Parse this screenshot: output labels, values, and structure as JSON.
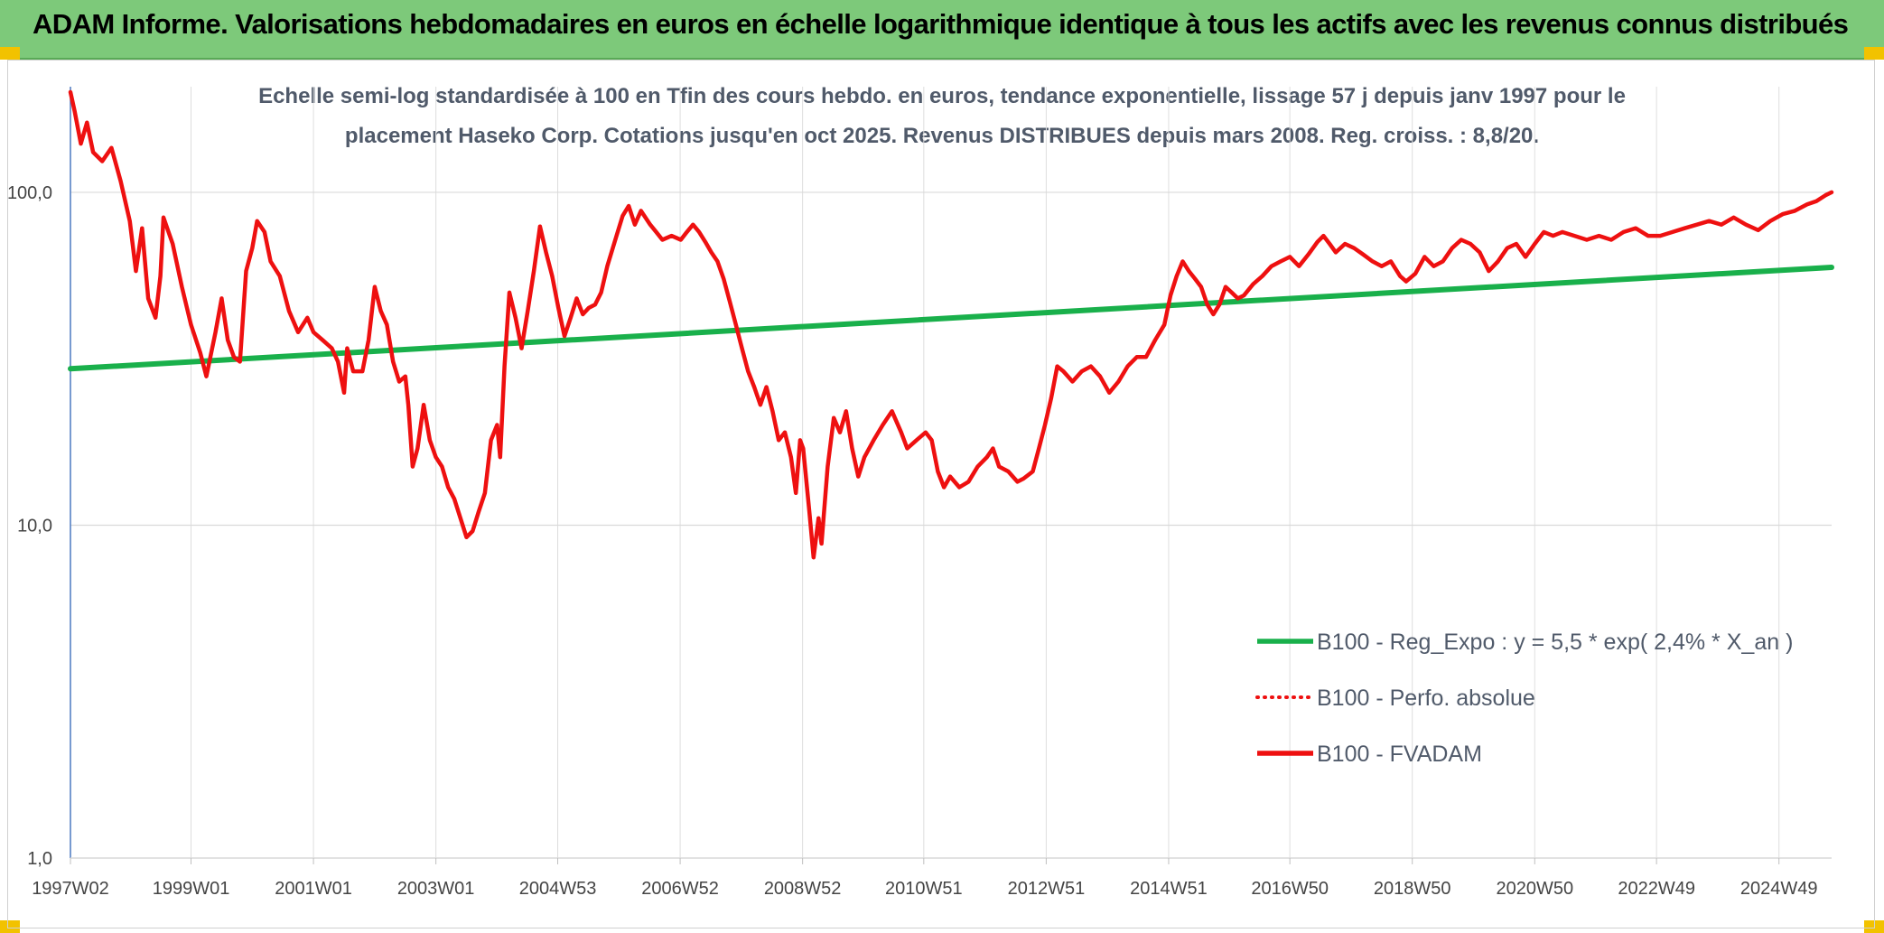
{
  "header": {
    "title": "ADAM Informe. Valorisations hebdomadaires en euros en échelle logarithmique identique à tous les actifs avec les revenus connus distribués"
  },
  "colors": {
    "banner": "#7dc97a",
    "regression": "#19b04b",
    "fvadam": "#ee1010",
    "perfo": "#ee1010"
  },
  "chart_data": {
    "type": "line",
    "title_lines": [
      "Echelle semi-log standardisée à 100 en Tfin des cours hebdo. en euros, tendance exponentielle, lissage 57 j depuis janv 1997 pour le",
      "placement Haseko Corp. Cotations jusqu'en oct 2025. Revenus DISTRIBUES depuis mars 2008. Reg. croiss. : 8,8/20."
    ],
    "y_scale": "log",
    "ylim": [
      1,
      200
    ],
    "y_ticks": [
      {
        "value": 1,
        "label": "1,0"
      },
      {
        "value": 10,
        "label": "10,0"
      },
      {
        "value": 100,
        "label": "100,0"
      }
    ],
    "xlim": [
      1997.03,
      2025.8
    ],
    "x_ticks": [
      {
        "value": 1997.03,
        "label": "1997W02"
      },
      {
        "value": 1999.0,
        "label": "1999W01"
      },
      {
        "value": 2001.0,
        "label": "2001W01"
      },
      {
        "value": 2003.0,
        "label": "2003W01"
      },
      {
        "value": 2004.99,
        "label": "2004W53"
      },
      {
        "value": 2006.99,
        "label": "2006W52"
      },
      {
        "value": 2008.99,
        "label": "2008W52"
      },
      {
        "value": 2010.97,
        "label": "2010W51"
      },
      {
        "value": 2012.97,
        "label": "2012W51"
      },
      {
        "value": 2014.97,
        "label": "2014W51"
      },
      {
        "value": 2016.95,
        "label": "2016W50"
      },
      {
        "value": 2018.95,
        "label": "2018W50"
      },
      {
        "value": 2020.95,
        "label": "2020W50"
      },
      {
        "value": 2022.94,
        "label": "2022W49"
      },
      {
        "value": 2024.94,
        "label": "2024W49"
      }
    ],
    "legend_position": "bottom-right",
    "series": [
      {
        "name": "B100 - Reg_Expo : y = 5,5 * exp( 2,4% *  X_an )",
        "style": "solid",
        "points": [
          [
            1997.03,
            29.5
          ],
          [
            2025.8,
            59.5
          ]
        ]
      },
      {
        "name": "B100 - Perfo. absolue",
        "style": "dotted",
        "points": []
      },
      {
        "name": "B100 - FVADAM",
        "style": "solid",
        "points": [
          [
            1997.03,
            200
          ],
          [
            1997.1,
            175
          ],
          [
            1997.2,
            140
          ],
          [
            1997.3,
            162
          ],
          [
            1997.4,
            132
          ],
          [
            1997.55,
            124
          ],
          [
            1997.7,
            136
          ],
          [
            1997.85,
            108
          ],
          [
            1998.0,
            82
          ],
          [
            1998.1,
            58
          ],
          [
            1998.2,
            78
          ],
          [
            1998.3,
            48
          ],
          [
            1998.42,
            42
          ],
          [
            1998.5,
            56
          ],
          [
            1998.55,
            84
          ],
          [
            1998.7,
            70
          ],
          [
            1998.85,
            52
          ],
          [
            1999.0,
            40
          ],
          [
            1999.15,
            33
          ],
          [
            1999.25,
            28
          ],
          [
            1999.4,
            38
          ],
          [
            1999.5,
            48
          ],
          [
            1999.6,
            36
          ],
          [
            1999.7,
            32
          ],
          [
            1999.8,
            31
          ],
          [
            1999.9,
            58
          ],
          [
            2000.0,
            68
          ],
          [
            2000.08,
            82
          ],
          [
            2000.2,
            76
          ],
          [
            2000.3,
            62
          ],
          [
            2000.45,
            56
          ],
          [
            2000.6,
            44
          ],
          [
            2000.75,
            38
          ],
          [
            2000.9,
            42
          ],
          [
            2001.0,
            38
          ],
          [
            2001.15,
            36
          ],
          [
            2001.3,
            34
          ],
          [
            2001.4,
            31
          ],
          [
            2001.5,
            25
          ],
          [
            2001.55,
            34
          ],
          [
            2001.65,
            29
          ],
          [
            2001.8,
            29
          ],
          [
            2001.9,
            36
          ],
          [
            2002.0,
            52
          ],
          [
            2002.1,
            44
          ],
          [
            2002.2,
            40
          ],
          [
            2002.3,
            31
          ],
          [
            2002.4,
            27
          ],
          [
            2002.5,
            28
          ],
          [
            2002.55,
            23
          ],
          [
            2002.62,
            15
          ],
          [
            2002.7,
            17
          ],
          [
            2002.8,
            23
          ],
          [
            2002.9,
            18
          ],
          [
            2003.0,
            16
          ],
          [
            2003.1,
            15
          ],
          [
            2003.2,
            13
          ],
          [
            2003.3,
            12
          ],
          [
            2003.4,
            10.5
          ],
          [
            2003.5,
            9.2
          ],
          [
            2003.6,
            9.6
          ],
          [
            2003.7,
            11
          ],
          [
            2003.8,
            12.5
          ],
          [
            2003.9,
            18
          ],
          [
            2004.0,
            20
          ],
          [
            2004.05,
            16
          ],
          [
            2004.12,
            30
          ],
          [
            2004.2,
            50
          ],
          [
            2004.3,
            42
          ],
          [
            2004.4,
            34
          ],
          [
            2004.5,
            44
          ],
          [
            2004.6,
            58
          ],
          [
            2004.7,
            79
          ],
          [
            2004.8,
            66
          ],
          [
            2004.9,
            56
          ],
          [
            2005.0,
            45
          ],
          [
            2005.1,
            37
          ],
          [
            2005.2,
            42
          ],
          [
            2005.3,
            48
          ],
          [
            2005.4,
            43
          ],
          [
            2005.5,
            45
          ],
          [
            2005.6,
            46
          ],
          [
            2005.7,
            50
          ],
          [
            2005.8,
            60
          ],
          [
            2005.95,
            74
          ],
          [
            2006.05,
            85
          ],
          [
            2006.15,
            91
          ],
          [
            2006.25,
            80
          ],
          [
            2006.35,
            88
          ],
          [
            2006.5,
            80
          ],
          [
            2006.6,
            76
          ],
          [
            2006.7,
            72
          ],
          [
            2006.85,
            74
          ],
          [
            2007.0,
            72
          ],
          [
            2007.1,
            76
          ],
          [
            2007.2,
            80
          ],
          [
            2007.3,
            76
          ],
          [
            2007.4,
            71
          ],
          [
            2007.5,
            66
          ],
          [
            2007.6,
            62
          ],
          [
            2007.7,
            55
          ],
          [
            2007.8,
            47
          ],
          [
            2007.9,
            40
          ],
          [
            2008.0,
            34
          ],
          [
            2008.1,
            29
          ],
          [
            2008.2,
            26
          ],
          [
            2008.3,
            23
          ],
          [
            2008.4,
            26
          ],
          [
            2008.5,
            22
          ],
          [
            2008.6,
            18
          ],
          [
            2008.7,
            19
          ],
          [
            2008.8,
            16
          ],
          [
            2008.88,
            12.5
          ],
          [
            2008.95,
            18
          ],
          [
            2009.0,
            17
          ],
          [
            2009.1,
            11
          ],
          [
            2009.17,
            8.0
          ],
          [
            2009.25,
            10.5
          ],
          [
            2009.3,
            8.8
          ],
          [
            2009.4,
            15
          ],
          [
            2009.5,
            21
          ],
          [
            2009.6,
            19
          ],
          [
            2009.7,
            22
          ],
          [
            2009.8,
            17
          ],
          [
            2009.9,
            14
          ],
          [
            2010.0,
            16
          ],
          [
            2010.15,
            18
          ],
          [
            2010.3,
            20
          ],
          [
            2010.45,
            22
          ],
          [
            2010.6,
            19
          ],
          [
            2010.7,
            17
          ],
          [
            2010.85,
            18
          ],
          [
            2011.0,
            19
          ],
          [
            2011.1,
            18
          ],
          [
            2011.2,
            14.5
          ],
          [
            2011.3,
            13
          ],
          [
            2011.4,
            14
          ],
          [
            2011.55,
            13
          ],
          [
            2011.7,
            13.5
          ],
          [
            2011.85,
            15
          ],
          [
            2012.0,
            16
          ],
          [
            2012.1,
            17
          ],
          [
            2012.2,
            15
          ],
          [
            2012.35,
            14.5
          ],
          [
            2012.5,
            13.5
          ],
          [
            2012.6,
            13.8
          ],
          [
            2012.75,
            14.5
          ],
          [
            2012.85,
            17
          ],
          [
            2012.95,
            20
          ],
          [
            2013.05,
            24
          ],
          [
            2013.15,
            30
          ],
          [
            2013.25,
            29
          ],
          [
            2013.4,
            27
          ],
          [
            2013.55,
            29
          ],
          [
            2013.7,
            30
          ],
          [
            2013.85,
            28
          ],
          [
            2014.0,
            25
          ],
          [
            2014.15,
            27
          ],
          [
            2014.3,
            30
          ],
          [
            2014.45,
            32
          ],
          [
            2014.6,
            32
          ],
          [
            2014.75,
            36
          ],
          [
            2014.9,
            40
          ],
          [
            2015.0,
            49
          ],
          [
            2015.1,
            56
          ],
          [
            2015.2,
            62
          ],
          [
            2015.3,
            58
          ],
          [
            2015.4,
            55
          ],
          [
            2015.5,
            52
          ],
          [
            2015.6,
            46
          ],
          [
            2015.7,
            43
          ],
          [
            2015.8,
            46
          ],
          [
            2015.9,
            52
          ],
          [
            2016.0,
            50
          ],
          [
            2016.1,
            48
          ],
          [
            2016.2,
            49
          ],
          [
            2016.35,
            53
          ],
          [
            2016.5,
            56
          ],
          [
            2016.65,
            60
          ],
          [
            2016.8,
            62
          ],
          [
            2016.95,
            64
          ],
          [
            2017.1,
            60
          ],
          [
            2017.25,
            65
          ],
          [
            2017.4,
            71
          ],
          [
            2017.5,
            74
          ],
          [
            2017.6,
            70
          ],
          [
            2017.7,
            66
          ],
          [
            2017.85,
            70
          ],
          [
            2018.0,
            68
          ],
          [
            2018.15,
            65
          ],
          [
            2018.3,
            62
          ],
          [
            2018.45,
            60
          ],
          [
            2018.6,
            62
          ],
          [
            2018.75,
            56
          ],
          [
            2018.85,
            54
          ],
          [
            2019.0,
            57
          ],
          [
            2019.15,
            64
          ],
          [
            2019.3,
            60
          ],
          [
            2019.45,
            62
          ],
          [
            2019.6,
            68
          ],
          [
            2019.75,
            72
          ],
          [
            2019.9,
            70
          ],
          [
            2020.05,
            66
          ],
          [
            2020.2,
            58
          ],
          [
            2020.35,
            62
          ],
          [
            2020.5,
            68
          ],
          [
            2020.65,
            70
          ],
          [
            2020.8,
            64
          ],
          [
            2020.95,
            70
          ],
          [
            2021.1,
            76
          ],
          [
            2021.25,
            74
          ],
          [
            2021.4,
            76
          ],
          [
            2021.6,
            74
          ],
          [
            2021.8,
            72
          ],
          [
            2022.0,
            74
          ],
          [
            2022.2,
            72
          ],
          [
            2022.4,
            76
          ],
          [
            2022.6,
            78
          ],
          [
            2022.8,
            74
          ],
          [
            2023.0,
            74
          ],
          [
            2023.2,
            76
          ],
          [
            2023.4,
            78
          ],
          [
            2023.6,
            80
          ],
          [
            2023.8,
            82
          ],
          [
            2024.0,
            80
          ],
          [
            2024.2,
            84
          ],
          [
            2024.4,
            80
          ],
          [
            2024.6,
            77
          ],
          [
            2024.8,
            82
          ],
          [
            2025.0,
            86
          ],
          [
            2025.2,
            88
          ],
          [
            2025.4,
            92
          ],
          [
            2025.55,
            94
          ],
          [
            2025.7,
            98
          ],
          [
            2025.8,
            100
          ]
        ]
      }
    ]
  }
}
